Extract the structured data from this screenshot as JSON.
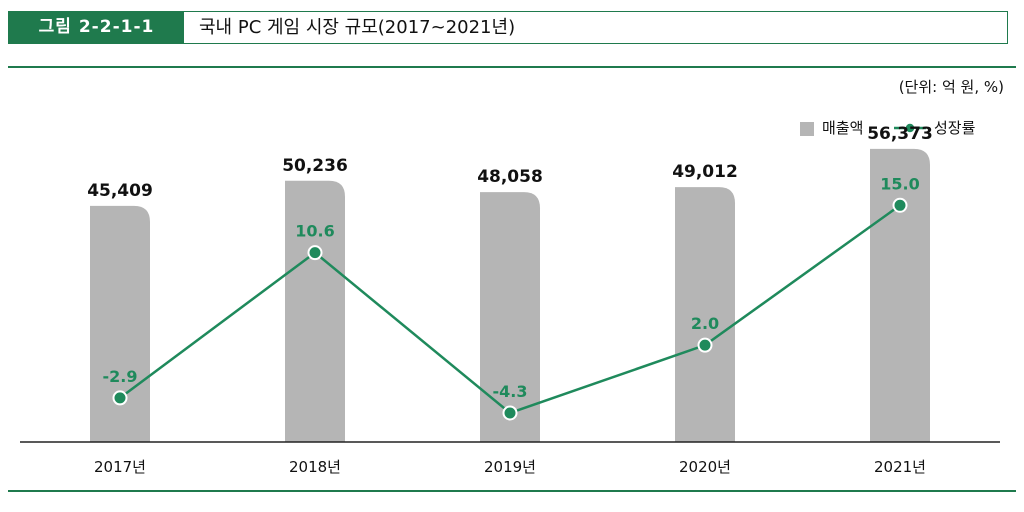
{
  "header": {
    "tag": "그림 2-2-1-1",
    "title": "국내 PC 게임 시장 규모(2017~2021년)"
  },
  "unit_label": "(단위: 억 원, %)",
  "colors": {
    "accent": "#1f7a4d",
    "bar": "#b5b5b5",
    "line": "#1f8a5c"
  },
  "chart_data": {
    "type": "bar",
    "title": "국내 PC 게임 시장 규모(2017~2021년)",
    "categories": [
      "2017년",
      "2018년",
      "2019년",
      "2020년",
      "2021년"
    ],
    "series": [
      {
        "name": "매출액",
        "type": "bar",
        "axis": "left",
        "values": [
          45409,
          50236,
          48058,
          49012,
          56373
        ],
        "labels": [
          "45,409",
          "50,236",
          "48,058",
          "49,012",
          "56,373"
        ]
      },
      {
        "name": "성장률",
        "type": "line",
        "axis": "right",
        "values": [
          -2.9,
          10.6,
          -4.3,
          2.0,
          15.0
        ],
        "labels": [
          "-2.9",
          "10.6",
          "-4.3",
          "2.0",
          "15.0"
        ]
      }
    ],
    "unit": "(단위: 억 원, %)",
    "ylim_bar": [
      0,
      60000
    ],
    "ylim_line": [
      -7,
      22
    ],
    "legend_position": "top-right",
    "grid": false
  }
}
